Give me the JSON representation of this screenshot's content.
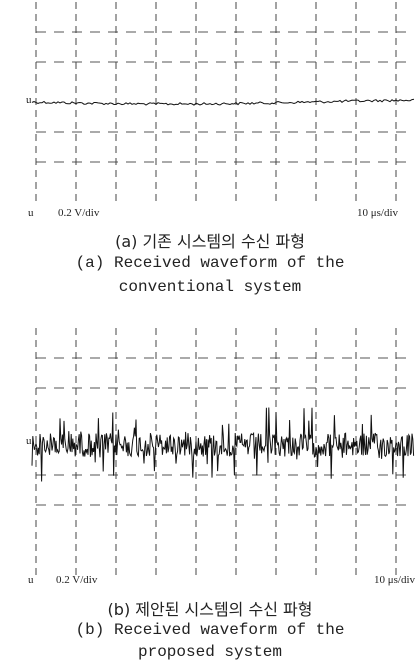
{
  "panel_a": {
    "marker": "u",
    "volt_div": "0.2 V/div",
    "time_div": "10 μs/div",
    "caption_kr": "(a) 기존 시스템의 수신 파형",
    "caption_en": [
      "(a) Received waveform of the",
      "conventional system"
    ]
  },
  "panel_b": {
    "marker": "u",
    "volt_div": "0.2 V/div",
    "time_div": "10 μs/div",
    "caption_kr": "(b) 제안된 시스템의 수신 파형",
    "caption_en": [
      "(b) Received waveform of the",
      "proposed system"
    ]
  }
}
